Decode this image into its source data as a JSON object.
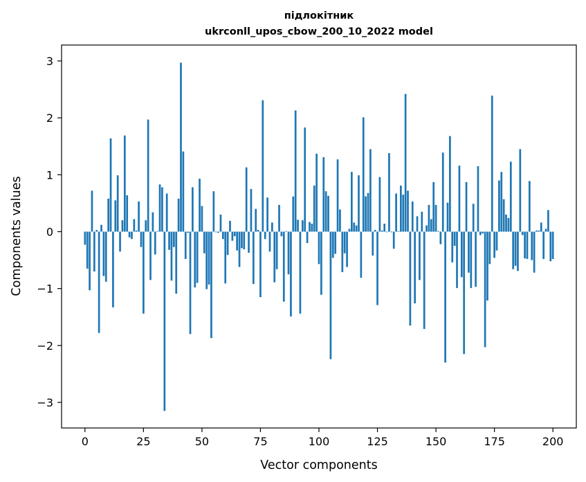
{
  "chart_data": {
    "type": "bar",
    "title": "підлокітник",
    "subtitle": "ukrconll_upos_cbow_200_10_2022 model",
    "xlabel": "Vector components",
    "ylabel": "Components values",
    "xlim": [
      -10,
      210
    ],
    "ylim": [
      -3.45,
      3.28
    ],
    "xticks": [
      0,
      25,
      50,
      75,
      100,
      125,
      150,
      175,
      200
    ],
    "yticks": [
      -3,
      -2,
      -1,
      0,
      1,
      2,
      3
    ],
    "xtick_labels": [
      "0",
      "25",
      "50",
      "75",
      "100",
      "125",
      "150",
      "175",
      "200"
    ],
    "ytick_labels": [
      "−3",
      "−2",
      "−1",
      "0",
      "1",
      "2",
      "3"
    ],
    "grid": false,
    "bar_color": "#1f77b4",
    "values": [
      -0.23,
      -0.65,
      -1.03,
      0.72,
      -0.7,
      0.03,
      -1.78,
      0.12,
      -0.78,
      -0.88,
      0.58,
      1.64,
      -1.33,
      0.55,
      0.99,
      -0.35,
      0.2,
      1.69,
      0.64,
      -0.1,
      -0.13,
      0.22,
      0.02,
      0.53,
      -0.27,
      -1.44,
      0.2,
      1.97,
      -0.85,
      0.34,
      -0.4,
      0.01,
      0.83,
      0.78,
      -3.15,
      0.67,
      -0.32,
      -0.86,
      -0.27,
      -1.09,
      0.58,
      2.97,
      1.41,
      -0.48,
      -0.02,
      -1.8,
      0.78,
      -0.98,
      -0.9,
      0.93,
      0.45,
      -0.38,
      -1.01,
      -0.93,
      -1.87,
      0.71,
      -0.01,
      -0.02,
      0.3,
      -0.13,
      -0.91,
      -0.41,
      0.19,
      -0.16,
      -0.08,
      -0.33,
      -0.62,
      -0.29,
      -0.31,
      1.13,
      -0.37,
      0.75,
      -0.92,
      0.4,
      0.03,
      -1.15,
      2.31,
      -0.13,
      0.6,
      -0.35,
      0.16,
      -0.89,
      -0.66,
      0.47,
      -0.08,
      -1.23,
      0.01,
      -0.75,
      -1.49,
      0.62,
      2.13,
      0.21,
      -1.44,
      0.2,
      1.83,
      -0.2,
      0.17,
      0.14,
      0.81,
      1.37,
      -0.57,
      -1.11,
      1.31,
      0.71,
      0.63,
      -2.24,
      -0.46,
      -0.39,
      1.27,
      0.39,
      -0.71,
      -0.38,
      -0.62,
      0.05,
      1.05,
      0.16,
      0.11,
      0.99,
      -0.81,
      2.01,
      0.62,
      0.68,
      1.45,
      -0.42,
      0.03,
      -1.29,
      0.96,
      0.02,
      0.14,
      -0.01,
      1.38,
      -0.01,
      -0.3,
      0.67,
      0.01,
      0.81,
      0.65,
      2.42,
      0.72,
      -1.65,
      0.53,
      -1.26,
      0.27,
      -0.85,
      0.35,
      -1.71,
      0.11,
      0.47,
      0.22,
      0.87,
      0.47,
      0.01,
      -0.22,
      1.39,
      -2.3,
      0.51,
      1.68,
      -0.54,
      -0.25,
      -0.99,
      1.16,
      -0.8,
      -2.15,
      0.87,
      -0.72,
      -0.99,
      0.49,
      -0.97,
      1.15,
      -0.06,
      -0.03,
      -2.03,
      -1.21,
      -0.57,
      2.39,
      -0.46,
      -0.33,
      0.9,
      1.05,
      0.57,
      0.3,
      0.24,
      1.23,
      -0.66,
      -0.6,
      -0.69,
      1.45,
      -0.06,
      -0.47,
      -0.48,
      0.89,
      -0.5,
      -0.72,
      0.02,
      0.02,
      0.16,
      -0.48,
      0.05,
      0.38,
      -0.52,
      -0.48
    ]
  }
}
